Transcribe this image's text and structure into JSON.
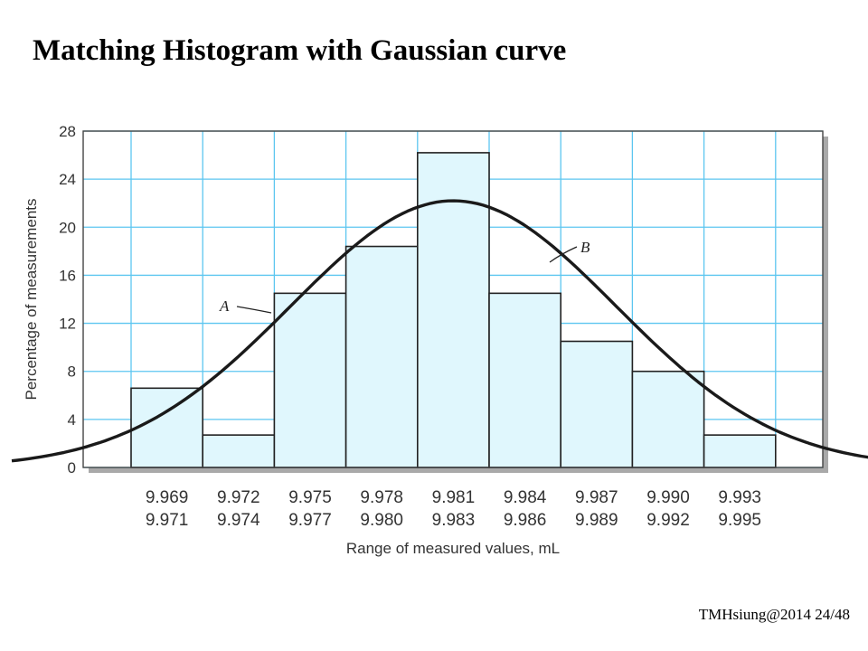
{
  "slide": {
    "title": "Matching Histogram with Gaussian curve",
    "footer": "TMHsiung@2014 24/48"
  },
  "colors": {
    "bar_fill": "#e0f7fd",
    "grid": "#5cc6f0",
    "curve": "#1a1a1a",
    "plot_bg": "#ffffff",
    "shadow": "#a9a9a9"
  },
  "chart_data": {
    "type": "bar",
    "categories": [
      [
        "9.969",
        "9.971"
      ],
      [
        "9.972",
        "9.974"
      ],
      [
        "9.975",
        "9.977"
      ],
      [
        "9.978",
        "9.980"
      ],
      [
        "9.981",
        "9.983"
      ],
      [
        "9.984",
        "9.986"
      ],
      [
        "9.987",
        "9.989"
      ],
      [
        "9.990",
        "9.992"
      ],
      [
        "9.993",
        "9.995"
      ]
    ],
    "values": [
      6.6,
      2.7,
      14.5,
      18.4,
      26.2,
      14.5,
      10.5,
      8.0,
      2.7
    ],
    "curve": {
      "x_start": 9.9635,
      "x_end": 10.0025,
      "mean": 9.982,
      "stdev": 0.0068,
      "peak": 22.2
    },
    "xlabel": "Range of measured values, mL",
    "ylabel": "Percentage of measurements",
    "ylim": [
      0,
      28
    ],
    "yticks": [
      0,
      4,
      8,
      12,
      16,
      20,
      24,
      28
    ],
    "grid": true,
    "annotations": [
      {
        "text": "A",
        "target": "histogram"
      },
      {
        "text": "B",
        "target": "gaussian curve"
      }
    ]
  }
}
